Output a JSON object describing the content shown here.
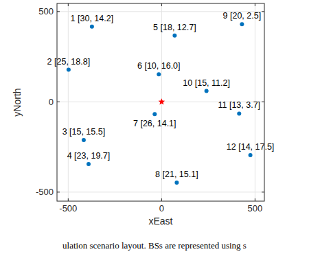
{
  "chart_data": {
    "type": "scatter",
    "x_label": "xEast",
    "y_label": "yNorth",
    "caption": "ulation scenario layout. BSs are represented using s",
    "xlim": [
      -560,
      550
    ],
    "ylim": [
      -550,
      545
    ],
    "xticks": [
      -500,
      0,
      500
    ],
    "yticks": [
      -500,
      0,
      500
    ],
    "grid": true,
    "series": [
      {
        "color": "#0072bd",
        "marker": "circle",
        "x": [
          -373,
          -498,
          -417,
          -391,
          70,
          -15,
          -37,
          81,
          430,
          240,
          415,
          475
        ],
        "values": [
          417,
          178,
          -212,
          -345,
          367,
          152,
          -68,
          -447,
          430,
          60,
          -65,
          -295
        ],
        "labels": [
          "1 [30, 14.2]",
          "2 [25, 18.8]",
          "3 [15, 15.5]",
          "4 [23, 19.7]",
          "5 [18, 12.7]",
          "6 [10, 16.0]",
          "7 [26, 14.1]",
          "8 [21, 15.1]",
          "9 [20, 2.5]",
          "10 [15, 11.2]",
          "11 [13, 3.7]",
          "12 [14, 17.5]"
        ]
      },
      {
        "color": "#ff0000",
        "marker": "star",
        "x": [
          0
        ],
        "values": [
          0
        ]
      }
    ]
  }
}
